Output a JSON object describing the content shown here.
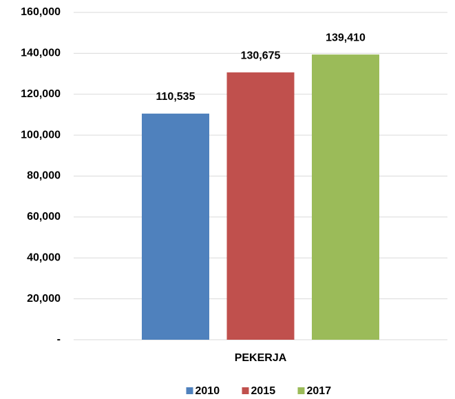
{
  "chart_data": {
    "type": "bar",
    "categories": [
      "PEKERJA"
    ],
    "series": [
      {
        "name": "2010",
        "color": "#4f81bd",
        "values": [
          110535
        ],
        "value_labels": [
          "110,535"
        ]
      },
      {
        "name": "2015",
        "color": "#c0504d",
        "values": [
          130675
        ],
        "value_labels": [
          "130,675"
        ]
      },
      {
        "name": "2017",
        "color": "#9bbb59",
        "values": [
          139410
        ],
        "value_labels": [
          "139,410"
        ]
      }
    ],
    "ylim": [
      0,
      160000
    ],
    "yticks": [
      {
        "value": 0,
        "label": "-"
      },
      {
        "value": 20000,
        "label": "20,000"
      },
      {
        "value": 40000,
        "label": "40,000"
      },
      {
        "value": 60000,
        "label": "60,000"
      },
      {
        "value": 80000,
        "label": "80,000"
      },
      {
        "value": 100000,
        "label": "100,000"
      },
      {
        "value": 120000,
        "label": "120,000"
      },
      {
        "value": 140000,
        "label": "140,000"
      },
      {
        "value": 160000,
        "label": "160,000"
      }
    ],
    "grid": true,
    "legend": "bottom"
  }
}
